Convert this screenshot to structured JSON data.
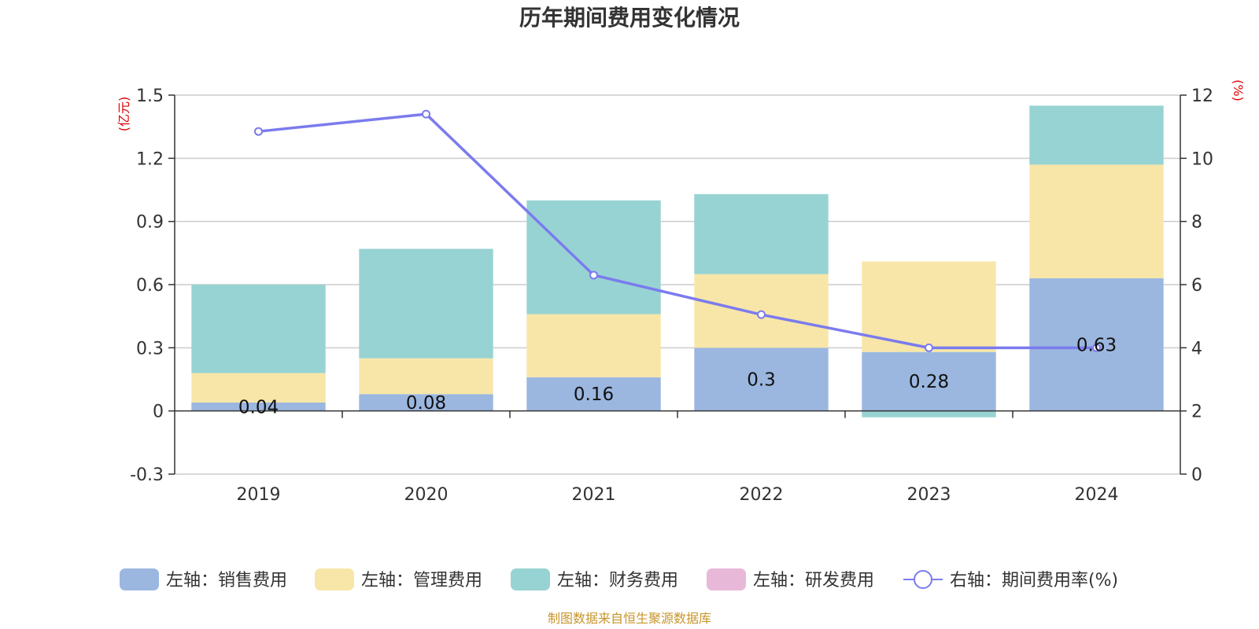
{
  "chart_data": {
    "type": "bar",
    "stacked": true,
    "title": "历年期间费用变化情况",
    "categories": [
      "2019",
      "2020",
      "2021",
      "2022",
      "2023",
      "2024"
    ],
    "y_left": {
      "unit": "(亿元)",
      "ylim": [
        -0.3,
        1.5
      ],
      "ticks": [
        "-0.3",
        "0",
        "0.3",
        "0.6",
        "0.9",
        "1.2",
        "1.5"
      ]
    },
    "y_right": {
      "unit": "(%)",
      "ylim": [
        0,
        12
      ],
      "ticks": [
        "0",
        "2",
        "4",
        "6",
        "8",
        "10",
        "12"
      ]
    },
    "series": [
      {
        "name": "左轴：销售费用",
        "axis": "left",
        "color": "#9bb7e0",
        "values": [
          0.04,
          0.08,
          0.16,
          0.3,
          0.28,
          0.63
        ],
        "labels": [
          "0.04",
          "0.08",
          "0.16",
          "0.3",
          "0.28",
          "0.63"
        ]
      },
      {
        "name": "左轴：管理费用",
        "axis": "left",
        "color": "#f7e6a8",
        "values": [
          0.14,
          0.17,
          0.3,
          0.35,
          0.43,
          0.54
        ]
      },
      {
        "name": "左轴：财务费用",
        "axis": "left",
        "color": "#98d3d3",
        "values": [
          0.42,
          0.52,
          0.54,
          0.38,
          -0.03,
          0.28
        ]
      },
      {
        "name": "左轴：研发费用",
        "axis": "left",
        "color": "#e8b8d8",
        "values": [
          0,
          0,
          0,
          0,
          0,
          0
        ]
      },
      {
        "name": "右轴：期间费用率(%)",
        "axis": "right",
        "type": "line",
        "color": "#7b7bee",
        "values": [
          10.85,
          11.4,
          6.3,
          5.05,
          4.0,
          4.0
        ]
      }
    ]
  },
  "source": "制图数据来自恒生聚源数据库"
}
